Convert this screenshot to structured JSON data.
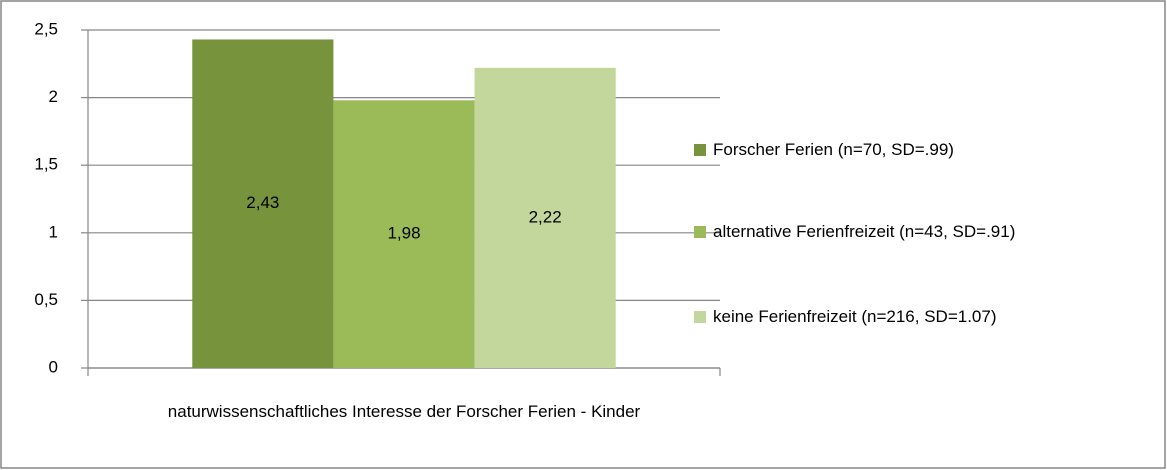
{
  "chart_data": {
    "type": "bar",
    "categories": [
      "naturwissenschaftliches Interesse der Forscher Ferien - Kinder"
    ],
    "series": [
      {
        "name": "Forscher Ferien (n=70, SD=.99)",
        "color": "#77933c",
        "values": [
          2.43
        ],
        "value_labels": [
          "2,43"
        ]
      },
      {
        "name": "alternative Ferienfreizeit (n=43, SD=.91)",
        "color": "#9bbb59",
        "values": [
          1.98
        ],
        "value_labels": [
          "1,98"
        ]
      },
      {
        "name": "keine Ferienfreizeit (n=216, SD=1.07)",
        "color": "#c3d69b",
        "values": [
          2.22
        ],
        "value_labels": [
          "2,22"
        ]
      }
    ],
    "ylim": [
      0,
      2.5
    ],
    "yticks": [
      0,
      {
        "value": 0.5,
        "label": "0,5"
      },
      1,
      {
        "value": 1.5,
        "label": "1,5"
      },
      2,
      {
        "value": 2.5,
        "label": "2,5"
      }
    ],
    "grid": true,
    "legend": "right"
  }
}
